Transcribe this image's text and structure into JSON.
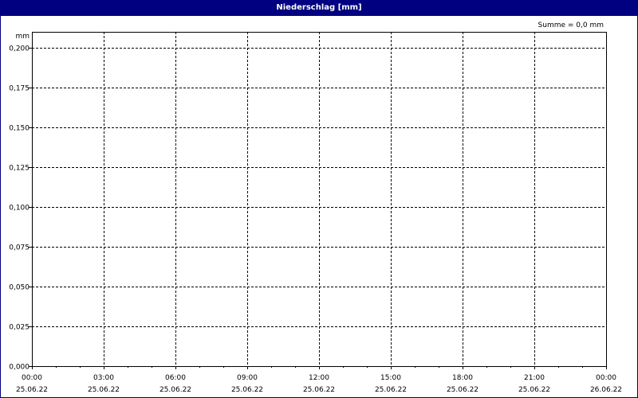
{
  "title": "Niederschlag [mm]",
  "chart_data": {
    "type": "bar",
    "title": "Niederschlag [mm]",
    "ylabel": "mm",
    "ylim": [
      0,
      0.2
    ],
    "yticks": [
      "0,000",
      "0,025",
      "0,050",
      "0,075",
      "0,100",
      "0,125",
      "0,150",
      "0,175",
      "0,200"
    ],
    "xticks": [
      {
        "time": "00:00",
        "date": "25.06.22"
      },
      {
        "time": "03:00",
        "date": "25.06.22"
      },
      {
        "time": "06:00",
        "date": "25.06.22"
      },
      {
        "time": "09:00",
        "date": "25.06.22"
      },
      {
        "time": "12:00",
        "date": "25.06.22"
      },
      {
        "time": "15:00",
        "date": "25.06.22"
      },
      {
        "time": "18:00",
        "date": "25.06.22"
      },
      {
        "time": "21:00",
        "date": "25.06.22"
      },
      {
        "time": "00:00",
        "date": "26.06.22"
      }
    ],
    "values": [],
    "grid": true,
    "annotation": "Summe = 0,0 mm"
  },
  "colors": {
    "titlebar": "#000080",
    "grid": "#000000"
  }
}
